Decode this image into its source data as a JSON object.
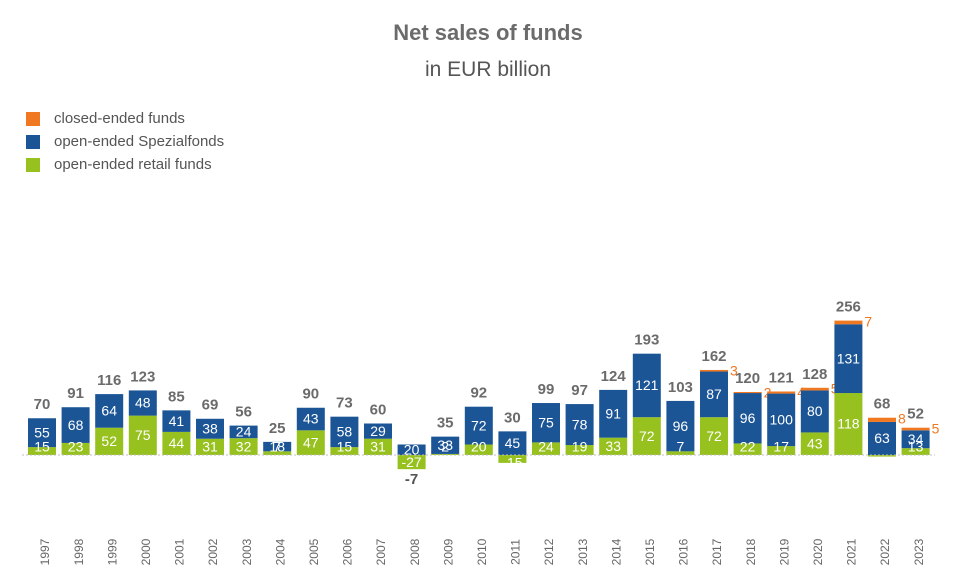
{
  "title": "Net sales of funds",
  "subtitle": "in EUR billion",
  "legend": [
    {
      "label": "closed-ended funds",
      "color": "#f07820"
    },
    {
      "label": "open-ended Spezialfonds",
      "color": "#1c5596"
    },
    {
      "label": "open-ended retail funds",
      "color": "#96c11f"
    }
  ],
  "chart_data": {
    "type": "bar",
    "stacked": true,
    "title": "Net sales of funds",
    "subtitle": "in EUR billion",
    "legend_position": "top-left",
    "categories": [
      "1997",
      "1998",
      "1999",
      "2000",
      "2001",
      "2002",
      "2003",
      "2004",
      "2005",
      "2006",
      "2007",
      "2008",
      "2009",
      "2010",
      "2011",
      "2012",
      "2013",
      "2014",
      "2015",
      "2016",
      "2017",
      "2018",
      "2019",
      "2020",
      "2021",
      "2022",
      "2023"
    ],
    "series": [
      {
        "name": "open-ended retail funds",
        "color": "#96c11f",
        "values": [
          15,
          23,
          52,
          75,
          44,
          31,
          32,
          7,
          47,
          15,
          31,
          -27,
          2,
          20,
          -15,
          24,
          19,
          33,
          72,
          7,
          72,
          22,
          17,
          43,
          118,
          -3,
          13
        ]
      },
      {
        "name": "open-ended Spezialfonds",
        "color": "#1c5596",
        "values": [
          55,
          68,
          64,
          48,
          41,
          38,
          24,
          18,
          43,
          58,
          29,
          20,
          33,
          72,
          45,
          75,
          78,
          91,
          121,
          96,
          87,
          96,
          100,
          80,
          131,
          63,
          34
        ]
      },
      {
        "name": "closed-ended funds",
        "color": "#f07820",
        "values": [
          null,
          null,
          null,
          null,
          null,
          null,
          null,
          null,
          null,
          null,
          null,
          null,
          null,
          null,
          null,
          null,
          null,
          null,
          null,
          null,
          3,
          2,
          4,
          5,
          7,
          8,
          5
        ]
      }
    ],
    "totals": [
      70,
      91,
      116,
      123,
      85,
      69,
      56,
      25,
      90,
      73,
      60,
      -7,
      35,
      92,
      30,
      99,
      97,
      124,
      193,
      103,
      162,
      120,
      121,
      128,
      256,
      68,
      52
    ]
  }
}
